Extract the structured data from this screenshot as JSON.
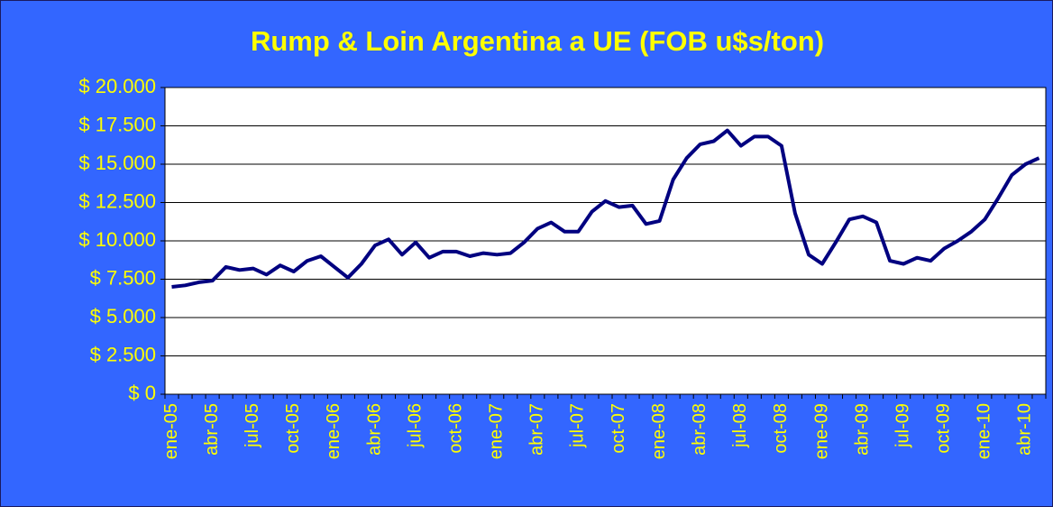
{
  "chart_data": {
    "type": "line",
    "title": "Rump & Loin Argentina a UE (FOB u$s/ton)",
    "categories": [
      "ene-05",
      null,
      null,
      "abr-05",
      null,
      null,
      "jul-05",
      null,
      null,
      "oct-05",
      null,
      null,
      "ene-06",
      null,
      null,
      "abr-06",
      null,
      null,
      "jul-06",
      null,
      null,
      "oct-06",
      null,
      null,
      "ene-07",
      null,
      null,
      "abr-07",
      null,
      null,
      "jul-07",
      null,
      null,
      "oct-07",
      null,
      null,
      "ene-08",
      null,
      null,
      "abr-08",
      null,
      null,
      "jul-08",
      null,
      null,
      "oct-08",
      null,
      null,
      "ene-09",
      null,
      null,
      "abr-09",
      null,
      null,
      "jul-09",
      null,
      null,
      "oct-09",
      null,
      null,
      "ene-10",
      null,
      null,
      "abr-10",
      null
    ],
    "values": [
      7000,
      7100,
      7300,
      7400,
      8300,
      8100,
      8200,
      7800,
      8400,
      8000,
      8700,
      9000,
      8300,
      7600,
      8500,
      9700,
      10100,
      9100,
      9900,
      8900,
      9300,
      9300,
      9000,
      9200,
      9100,
      9200,
      9900,
      10800,
      11200,
      10600,
      10600,
      11900,
      12600,
      12200,
      12300,
      11100,
      11300,
      14000,
      15400,
      16300,
      16500,
      17200,
      16200,
      16800,
      16800,
      16200,
      11800,
      9100,
      8500,
      9900,
      11400,
      11600,
      11200,
      8700,
      8500,
      8900,
      8700,
      9500,
      10000,
      10600,
      11400,
      12800,
      14300,
      15000,
      15400
    ],
    "color": "#000080",
    "ylim": [
      0,
      20000
    ],
    "yticks": [
      {
        "value": 0,
        "label": "$ 0"
      },
      {
        "value": 2500,
        "label": "$ 2.500"
      },
      {
        "value": 5000,
        "label": "$ 5.000"
      },
      {
        "value": 7500,
        "label": "$ 7.500"
      },
      {
        "value": 10000,
        "label": "$ 10.000"
      },
      {
        "value": 12500,
        "label": "$ 12.500"
      },
      {
        "value": 15000,
        "label": "$ 15.000"
      },
      {
        "value": 17500,
        "label": "$ 17.500"
      },
      {
        "value": 20000,
        "label": "$ 20.000"
      }
    ],
    "grid": true
  }
}
